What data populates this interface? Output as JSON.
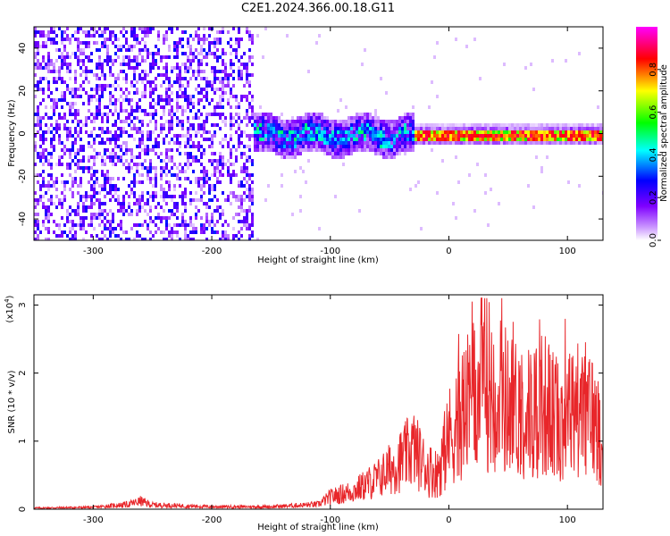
{
  "title": "C2E1.2024.366.00.18.G11",
  "chart_data": [
    {
      "type": "heatmap",
      "xlabel": "Height of straight line (km)",
      "ylabel": "Frequency (Hz)",
      "xlim": [
        -350,
        130
      ],
      "ylim": [
        -50,
        50
      ],
      "x_ticks": [
        -300,
        -200,
        -100,
        0,
        100
      ],
      "y_ticks": [
        -40,
        -20,
        0,
        20,
        40
      ],
      "colorbar": {
        "label": "Normalized spectral amplitude",
        "range": [
          0,
          1
        ],
        "ticks": [
          0.0,
          0.2,
          0.4,
          0.6,
          0.8
        ],
        "tick_labels": [
          "0.0",
          "0.2",
          "0.4",
          "0.6",
          "0.8"
        ],
        "colors": [
          "#ffffff",
          "#7f00ff",
          "#0000ff",
          "#00ffff",
          "#00ff00",
          "#ffff00",
          "#ff0000",
          "#ff00ff"
        ]
      },
      "features": [
        {
          "x_range": [
            -350,
            -165
          ],
          "frequency_range": [
            -50,
            50
          ],
          "level": 0.15,
          "note": "broadband noise"
        },
        {
          "x_range": [
            -165,
            -30
          ],
          "center_frequency": 0,
          "spread_hz": 8,
          "level": 0.35
        },
        {
          "x_range": [
            -30,
            130
          ],
          "center_frequency": 0,
          "spread_hz": 3,
          "level": 0.85
        }
      ]
    },
    {
      "type": "line",
      "xlabel": "Height of straight line (km)",
      "ylabel": "SNR (10 * v/v)",
      "y_multiplier": "(x10",
      "y_multiplier_exp": "4",
      "xlim": [
        -350,
        130
      ],
      "ylim": [
        0,
        3.15
      ],
      "x_ticks": [
        -300,
        -200,
        -100,
        0,
        100
      ],
      "y_ticks": [
        0,
        1,
        2,
        3
      ],
      "line_color": "#e8262a",
      "series": [
        {
          "x": [
            -350,
            -300,
            -270,
            -260,
            -250,
            -200,
            -150,
            -110,
            -100,
            -80,
            -60,
            -40,
            -30,
            -20,
            -10,
            0,
            10,
            20,
            30,
            40,
            50,
            60,
            70,
            80,
            90,
            100,
            110,
            120,
            130
          ],
          "y": [
            0.02,
            0.03,
            0.08,
            0.13,
            0.07,
            0.04,
            0.04,
            0.08,
            0.2,
            0.3,
            0.5,
            0.8,
            1.0,
            0.7,
            0.6,
            1.2,
            1.6,
            1.8,
            2.2,
            2.0,
            1.8,
            1.7,
            1.6,
            1.8,
            1.5,
            1.6,
            1.7,
            1.6,
            1.2
          ]
        }
      ]
    }
  ]
}
